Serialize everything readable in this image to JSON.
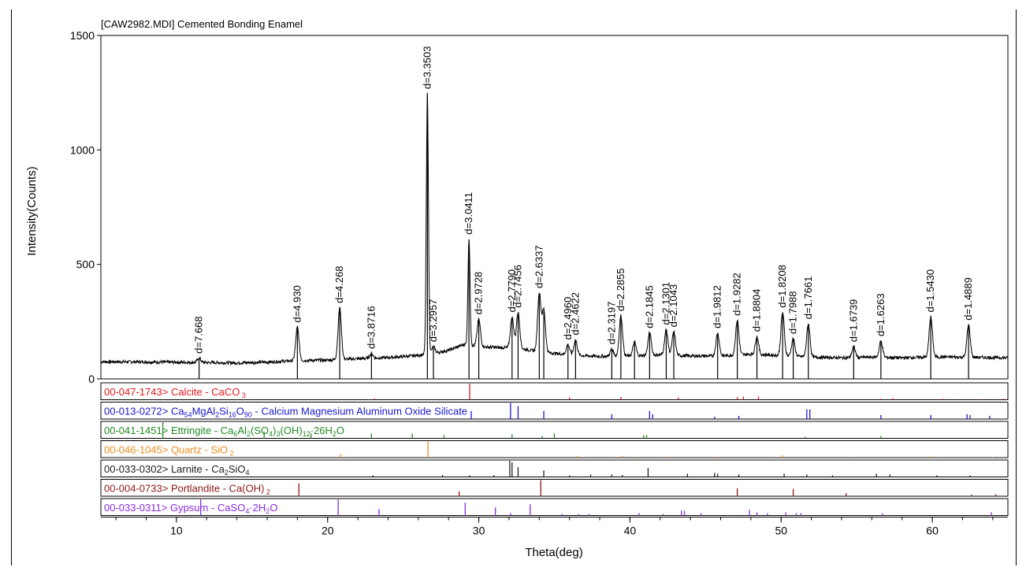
{
  "chart_data": {
    "type": "line",
    "title": "[CAW2982.MDI] Cemented Bonding Enamel",
    "xlabel": "Theta(deg)",
    "ylabel": "Intensity(Counts)",
    "xlim": [
      5,
      65
    ],
    "ylim": [
      0,
      1500
    ],
    "xticks": [
      "10",
      "20",
      "30",
      "40",
      "50",
      "60"
    ],
    "yticks": [
      "0",
      "500",
      "1000",
      "1500"
    ],
    "background": [
      [
        5,
        75
      ],
      [
        8,
        74
      ],
      [
        11,
        72
      ],
      [
        14,
        70
      ],
      [
        16,
        73
      ],
      [
        18,
        80
      ],
      [
        20,
        82
      ],
      [
        22,
        88
      ],
      [
        24,
        93
      ],
      [
        25.5,
        100
      ],
      [
        27,
        110
      ],
      [
        28,
        125
      ],
      [
        29,
        150
      ],
      [
        30,
        140
      ],
      [
        31,
        138
      ],
      [
        32,
        135
      ],
      [
        33,
        130
      ],
      [
        34,
        118
      ],
      [
        36,
        105
      ],
      [
        38,
        98
      ],
      [
        40,
        100
      ],
      [
        42,
        105
      ],
      [
        44,
        100
      ],
      [
        46,
        100
      ],
      [
        48,
        108
      ],
      [
        50,
        102
      ],
      [
        52,
        95
      ],
      [
        54,
        92
      ],
      [
        56,
        95
      ],
      [
        58,
        92
      ],
      [
        60,
        96
      ],
      [
        62,
        95
      ],
      [
        65,
        92
      ]
    ],
    "peaks": [
      {
        "x": 11.5,
        "y": 90,
        "label": "d=7.668"
      },
      {
        "x": 18.0,
        "y": 225,
        "label": "d=4.930"
      },
      {
        "x": 20.8,
        "y": 310,
        "label": "d=4.268"
      },
      {
        "x": 22.9,
        "y": 110,
        "label": "d=3.8716"
      },
      {
        "x": 26.6,
        "y": 1245,
        "label": "d=3.3503"
      },
      {
        "x": 27.0,
        "y": 140,
        "label": "d=3.2957"
      },
      {
        "x": 29.35,
        "y": 610,
        "label": "d=3.0411"
      },
      {
        "x": 30.0,
        "y": 260,
        "label": "d=2.9728"
      },
      {
        "x": 32.2,
        "y": 270,
        "label": "d=2.7790"
      },
      {
        "x": 32.6,
        "y": 290,
        "label": "d=2.7456"
      },
      {
        "x": 34.0,
        "y": 375,
        "label": "d=2.6337"
      },
      {
        "x": 34.3,
        "y": 300,
        "label": ""
      },
      {
        "x": 35.9,
        "y": 150,
        "label": "d=2.4960"
      },
      {
        "x": 36.4,
        "y": 170,
        "label": "d=2.4622"
      },
      {
        "x": 38.8,
        "y": 130,
        "label": "d=2.3197"
      },
      {
        "x": 39.4,
        "y": 275,
        "label": "d=2.2855"
      },
      {
        "x": 40.3,
        "y": 160,
        "label": ""
      },
      {
        "x": 41.3,
        "y": 200,
        "label": "d=2.1845"
      },
      {
        "x": 42.4,
        "y": 215,
        "label": "d=2.1301"
      },
      {
        "x": 42.9,
        "y": 205,
        "label": "d=2.1043"
      },
      {
        "x": 45.8,
        "y": 200,
        "label": "d=1.9812"
      },
      {
        "x": 47.1,
        "y": 255,
        "label": "d=1.9282"
      },
      {
        "x": 48.4,
        "y": 185,
        "label": "d=1.8804"
      },
      {
        "x": 50.1,
        "y": 290,
        "label": "d=1.8208"
      },
      {
        "x": 50.8,
        "y": 175,
        "label": "d=1.7988"
      },
      {
        "x": 51.8,
        "y": 240,
        "label": "d=1.7661"
      },
      {
        "x": 54.8,
        "y": 140,
        "label": "d=1.6739"
      },
      {
        "x": 56.6,
        "y": 165,
        "label": "d=1.6263"
      },
      {
        "x": 59.9,
        "y": 270,
        "label": "d=1.5430"
      },
      {
        "x": 62.4,
        "y": 235,
        "label": "d=1.4889"
      }
    ],
    "reference_patterns": [
      {
        "name": "00-047-1743> Calcite - CaCO",
        "sub": "3",
        "color": "#e31a1c",
        "lines": [
          [
            29.4,
            1.0
          ],
          [
            23.1,
            0.08
          ],
          [
            36.0,
            0.15
          ],
          [
            39.4,
            0.18
          ],
          [
            43.2,
            0.15
          ],
          [
            47.1,
            0.17
          ],
          [
            47.5,
            0.2
          ],
          [
            48.5,
            0.2
          ],
          [
            56.6,
            0.05
          ],
          [
            57.4,
            0.1
          ],
          [
            60.7,
            0.06
          ],
          [
            61.4,
            0.04
          ],
          [
            63.1,
            0.04
          ],
          [
            64.7,
            0.06
          ]
        ]
      },
      {
        "name": "00-013-0272> Ca54MgAl2Si16O90 - Calcium Magnesium Aluminum Oxide Silicate",
        "sub": "",
        "color": "#1a1acc",
        "lines": [
          [
            29.5,
            0.5
          ],
          [
            32.1,
            1.0
          ],
          [
            32.6,
            0.8
          ],
          [
            34.3,
            0.5
          ],
          [
            38.8,
            0.3
          ],
          [
            41.3,
            0.5
          ],
          [
            41.5,
            0.3
          ],
          [
            45.6,
            0.15
          ],
          [
            47.2,
            0.2
          ],
          [
            51.7,
            0.6
          ],
          [
            51.9,
            0.6
          ],
          [
            56.6,
            0.25
          ],
          [
            59.9,
            0.25
          ],
          [
            62.3,
            0.3
          ],
          [
            62.5,
            0.25
          ],
          [
            63.8,
            0.2
          ]
        ]
      },
      {
        "name": "00-041-1451> Ettringite - Ca6Al2(SO4)3(OH)12·26H2O",
        "sub": "",
        "color": "#228b22",
        "lines": [
          [
            9.1,
            1.0
          ],
          [
            15.8,
            0.4
          ],
          [
            18.9,
            0.3
          ],
          [
            22.9,
            0.3
          ],
          [
            25.6,
            0.3
          ],
          [
            27.7,
            0.2
          ],
          [
            32.2,
            0.25
          ],
          [
            34.2,
            0.15
          ],
          [
            35.0,
            0.3
          ],
          [
            40.9,
            0.2
          ],
          [
            41.1,
            0.2
          ],
          [
            51.6,
            0.1
          ],
          [
            56.6,
            0.15
          ]
        ]
      },
      {
        "name": "00-046-1045> Quartz - SiO",
        "sub": "2",
        "color": "#f08c1e",
        "lines": [
          [
            20.86,
            0.22
          ],
          [
            26.64,
            1.0
          ],
          [
            36.5,
            0.09
          ],
          [
            39.5,
            0.09
          ],
          [
            40.3,
            0.05
          ],
          [
            42.5,
            0.07
          ],
          [
            45.8,
            0.05
          ],
          [
            50.1,
            0.14
          ],
          [
            54.9,
            0.05
          ],
          [
            59.9,
            0.09
          ],
          [
            64.0,
            0.04
          ]
        ]
      },
      {
        "name": "00-033-0302> Larnite - Ca",
        "sub": "2SiO4",
        "color": "#202020",
        "lines": [
          [
            23.0,
            0.1
          ],
          [
            27.6,
            0.12
          ],
          [
            29.4,
            0.1
          ],
          [
            31.0,
            0.12
          ],
          [
            32.05,
            1.0
          ],
          [
            32.2,
            0.9
          ],
          [
            32.6,
            0.6
          ],
          [
            34.3,
            0.4
          ],
          [
            36.0,
            0.1
          ],
          [
            37.4,
            0.15
          ],
          [
            38.8,
            0.15
          ],
          [
            39.5,
            0.12
          ],
          [
            41.2,
            0.55
          ],
          [
            43.8,
            0.2
          ],
          [
            45.6,
            0.25
          ],
          [
            45.8,
            0.2
          ],
          [
            47.2,
            0.15
          ],
          [
            50.2,
            0.2
          ],
          [
            51.7,
            0.15
          ],
          [
            53.4,
            0.1
          ],
          [
            56.3,
            0.2
          ],
          [
            57.2,
            0.15
          ],
          [
            60.3,
            0.1
          ],
          [
            62.5,
            0.1
          ]
        ]
      },
      {
        "name": "00-004-0733> Portlandite - Ca(OH)",
        "sub": "2",
        "color": "#8b1a1a",
        "lines": [
          [
            18.1,
            0.8
          ],
          [
            28.7,
            0.3
          ],
          [
            34.1,
            1.0
          ],
          [
            47.1,
            0.5
          ],
          [
            50.8,
            0.45
          ],
          [
            54.3,
            0.2
          ],
          [
            62.6,
            0.1
          ],
          [
            64.2,
            0.12
          ]
        ]
      },
      {
        "name": "00-033-0311> Gypsum - CaSO4·2H2O",
        "sub": "",
        "color": "#8a2be2",
        "lines": [
          [
            11.6,
            1.0
          ],
          [
            20.7,
            1.0
          ],
          [
            23.4,
            0.4
          ],
          [
            29.1,
            0.8
          ],
          [
            31.1,
            0.5
          ],
          [
            32.1,
            0.15
          ],
          [
            33.4,
            0.7
          ],
          [
            35.5,
            0.1
          ],
          [
            36.6,
            0.1
          ],
          [
            37.3,
            0.1
          ],
          [
            40.6,
            0.15
          ],
          [
            42.2,
            0.1
          ],
          [
            43.4,
            0.3
          ],
          [
            43.6,
            0.3
          ],
          [
            44.7,
            0.15
          ],
          [
            47.9,
            0.35
          ],
          [
            48.4,
            0.2
          ],
          [
            49.1,
            0.15
          ],
          [
            50.3,
            0.2
          ],
          [
            51.0,
            0.15
          ],
          [
            51.3,
            0.15
          ],
          [
            56.7,
            0.15
          ],
          [
            63.9,
            0.2
          ]
        ]
      }
    ]
  },
  "reference_labels": [
    {
      "code": "00-047-1743>",
      "text": "Calcite - CaCO",
      "sub": "3"
    },
    {
      "code": "00-013-0272>",
      "text": "Ca",
      "rich": [
        [
          "Ca",
          ""
        ],
        [
          "54",
          "sub"
        ],
        [
          "MgAl",
          ""
        ],
        [
          "2",
          "sub"
        ],
        [
          "Si",
          ""
        ],
        [
          "16",
          "sub"
        ],
        [
          "O",
          ""
        ],
        [
          "90",
          "sub"
        ],
        [
          " - Calcium Magnesium Aluminum Oxide Silicate",
          ""
        ]
      ]
    },
    {
      "code": "00-041-1451>",
      "text": "Ettringite - ",
      "rich": [
        [
          "Ettringite - Ca",
          ""
        ],
        [
          "6",
          "sub"
        ],
        [
          "Al",
          ""
        ],
        [
          "2",
          "sub"
        ],
        [
          "(SO",
          ""
        ],
        [
          "4",
          "sub"
        ],
        [
          ")",
          ""
        ],
        [
          "3",
          "sub"
        ],
        [
          "(OH)",
          ""
        ],
        [
          "12",
          "sub"
        ],
        [
          "·26H",
          ""
        ],
        [
          "2",
          "sub"
        ],
        [
          "O",
          ""
        ]
      ]
    },
    {
      "code": "00-046-1045>",
      "text": "Quartz - SiO",
      "sub": "2"
    },
    {
      "code": "00-033-0302>",
      "text": "Larnite - ",
      "rich": [
        [
          "Larnite - Ca",
          ""
        ],
        [
          "2",
          "sub"
        ],
        [
          "SiO",
          ""
        ],
        [
          "4",
          "sub"
        ]
      ]
    },
    {
      "code": "00-004-0733>",
      "text": "Portlandite - Ca(OH)",
      "sub": "2"
    },
    {
      "code": "00-033-0311>",
      "text": "Gypsum - ",
      "rich": [
        [
          "Gypsum - CaSO",
          ""
        ],
        [
          "4",
          "sub"
        ],
        [
          "·2H",
          ""
        ],
        [
          "2",
          "sub"
        ],
        [
          "O",
          ""
        ]
      ]
    }
  ]
}
